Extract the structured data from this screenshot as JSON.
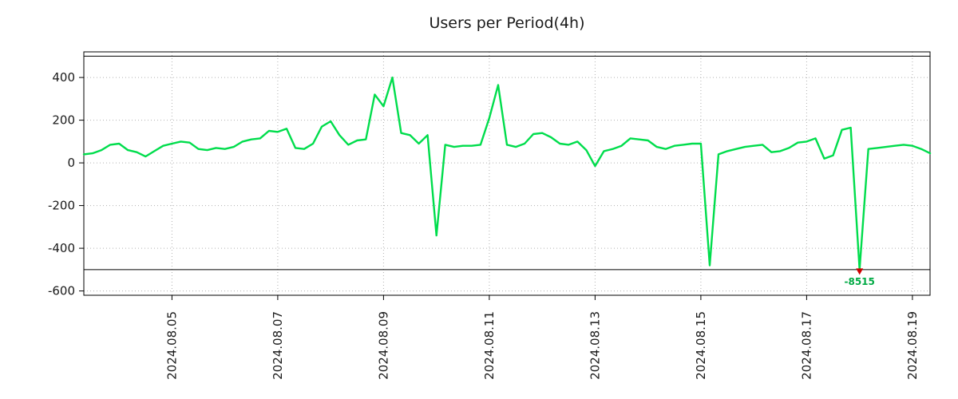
{
  "chart_data": {
    "type": "line",
    "title": "Users per Period(4h)",
    "xlabel": "",
    "ylabel": "",
    "ylim": [
      -620,
      520
    ],
    "grid": true,
    "clip_min": -500,
    "hlines": [
      500,
      -500
    ],
    "y_ticks": [
      400,
      200,
      0,
      -200,
      -400,
      -600
    ],
    "x_ticks": [
      {
        "index": 10,
        "label": "2024.08.05"
      },
      {
        "index": 22,
        "label": "2024.08.07"
      },
      {
        "index": 34,
        "label": "2024.08.09"
      },
      {
        "index": 46,
        "label": "2024.08.11"
      },
      {
        "index": 58,
        "label": "2024.08.13"
      },
      {
        "index": 70,
        "label": "2024.08.15"
      },
      {
        "index": 82,
        "label": "2024.08.17"
      },
      {
        "index": 94,
        "label": "2024.08.19"
      }
    ],
    "series": [
      {
        "name": "users",
        "color": "#00dd4c",
        "values": [
          40,
          45,
          60,
          85,
          90,
          60,
          50,
          30,
          55,
          80,
          90,
          100,
          95,
          65,
          60,
          70,
          65,
          75,
          100,
          110,
          115,
          150,
          145,
          160,
          70,
          65,
          90,
          170,
          195,
          130,
          85,
          105,
          110,
          320,
          265,
          400,
          140,
          130,
          90,
          130,
          -340,
          85,
          75,
          80,
          80,
          85,
          210,
          365,
          85,
          75,
          90,
          135,
          140,
          120,
          90,
          85,
          100,
          60,
          -15,
          55,
          65,
          80,
          115,
          110,
          105,
          75,
          65,
          80,
          85,
          90,
          90,
          -480,
          40,
          55,
          65,
          75,
          80,
          85,
          50,
          55,
          70,
          95,
          100,
          115,
          20,
          35,
          155,
          165,
          -8515,
          65,
          70,
          75,
          80,
          85,
          80,
          65,
          45
        ]
      }
    ],
    "annotation": {
      "index": 88,
      "label": "-8515",
      "marker_color": "#cc0000",
      "text_color": "#00aa44"
    },
    "colors": {
      "grid": "#b0b0b0",
      "frame": "#000000",
      "text": "#1a1a1a",
      "background": "#ffffff"
    }
  }
}
